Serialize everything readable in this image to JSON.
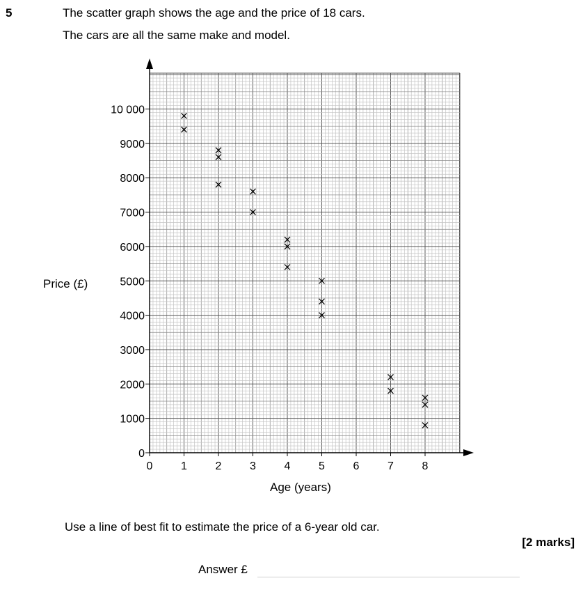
{
  "question": {
    "number": "5",
    "intro_line_1": "The scatter graph shows the age and the price of 18 cars.",
    "intro_line_2": "The cars are all the same make and model.",
    "prompt": "Use a line of best fit to estimate the price of a 6-year old car.",
    "marks": "[2 marks]",
    "answer_label": "Answer £"
  },
  "chart_data": {
    "type": "scatter",
    "title": "",
    "xlabel": "Age (years)",
    "ylabel": "Price (£)",
    "xlim": [
      0,
      9
    ],
    "ylim": [
      0,
      11000
    ],
    "x_ticks": [
      0,
      1,
      2,
      3,
      4,
      5,
      6,
      7,
      8
    ],
    "x_tick_labels": [
      "0",
      "1",
      "2",
      "3",
      "4",
      "5",
      "6",
      "7",
      "8"
    ],
    "y_ticks": [
      0,
      1000,
      2000,
      3000,
      4000,
      5000,
      6000,
      7000,
      8000,
      9000,
      10000
    ],
    "y_tick_labels": [
      "0",
      "1000",
      "2000",
      "3000",
      "4000",
      "5000",
      "6000",
      "7000",
      "8000",
      "9000",
      "10 000"
    ],
    "grid": true,
    "marker": "cross",
    "points": [
      {
        "x": 1,
        "y": 9800
      },
      {
        "x": 1,
        "y": 9400
      },
      {
        "x": 2,
        "y": 8800
      },
      {
        "x": 2,
        "y": 8600
      },
      {
        "x": 2,
        "y": 7800
      },
      {
        "x": 3,
        "y": 7600
      },
      {
        "x": 3,
        "y": 7000
      },
      {
        "x": 4,
        "y": 6200
      },
      {
        "x": 4,
        "y": 6000
      },
      {
        "x": 4,
        "y": 5400
      },
      {
        "x": 5,
        "y": 5000
      },
      {
        "x": 5,
        "y": 4400
      },
      {
        "x": 5,
        "y": 4000
      },
      {
        "x": 7,
        "y": 2200
      },
      {
        "x": 7,
        "y": 1800
      },
      {
        "x": 8,
        "y": 1600
      },
      {
        "x": 8,
        "y": 1400
      },
      {
        "x": 8,
        "y": 800
      }
    ]
  }
}
